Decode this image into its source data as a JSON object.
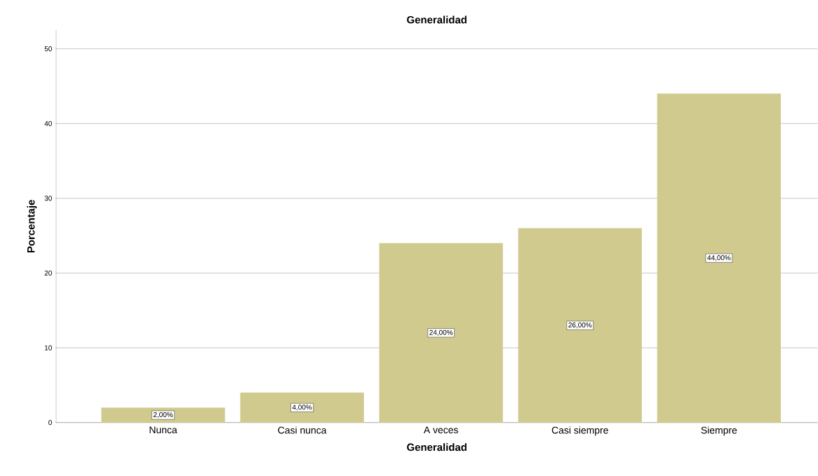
{
  "chart_data": {
    "type": "bar",
    "title": "Generalidad",
    "xlabel": "Generalidad",
    "ylabel": "Porcentaje",
    "categories": [
      "Nunca",
      "Casi nunca",
      "A veces",
      "Casi siempre",
      "Siempre"
    ],
    "values": [
      2,
      4,
      24,
      26,
      44
    ],
    "value_labels": [
      "2,00%",
      "4,00%",
      "24,00%",
      "26,00%",
      "44,00%"
    ],
    "color": "#d0ca8e",
    "ylim": [
      0,
      52.5
    ],
    "yticks": [
      0,
      10,
      20,
      30,
      40,
      50
    ],
    "grid": "y"
  }
}
